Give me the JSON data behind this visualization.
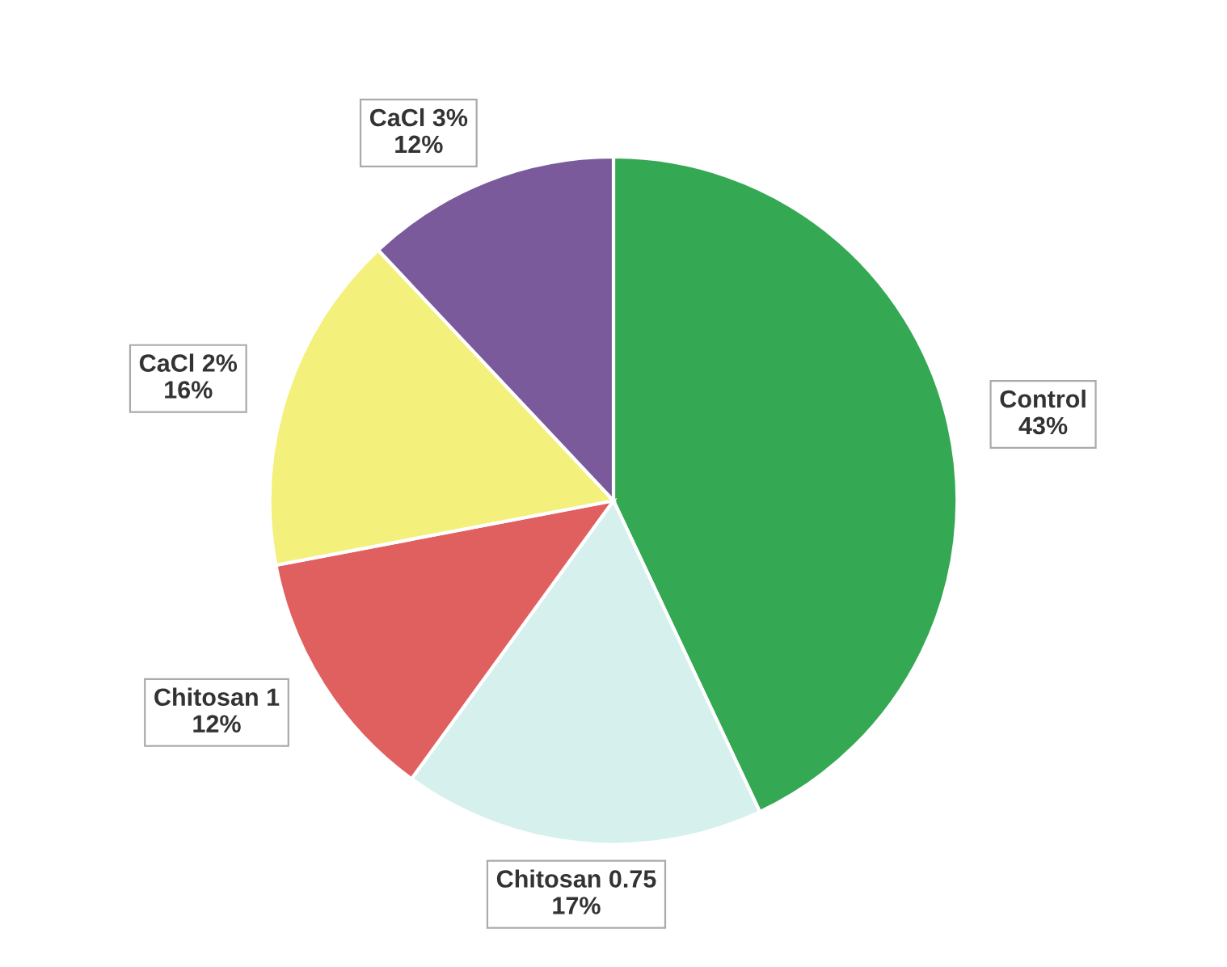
{
  "chart_data": {
    "type": "pie",
    "categories": [
      "Control",
      "Chitosan 0.75",
      "Chitosan 1",
      "CaCl 2%",
      "CaCl 3%"
    ],
    "values": [
      43,
      17,
      12,
      16,
      12
    ],
    "value_labels": [
      "43%",
      "17%",
      "12%",
      "16%",
      "12%"
    ],
    "colors": [
      "#34a853",
      "#d6f0ee",
      "#e06060",
      "#f4f07c",
      "#7a5a9a"
    ],
    "legend": false
  }
}
